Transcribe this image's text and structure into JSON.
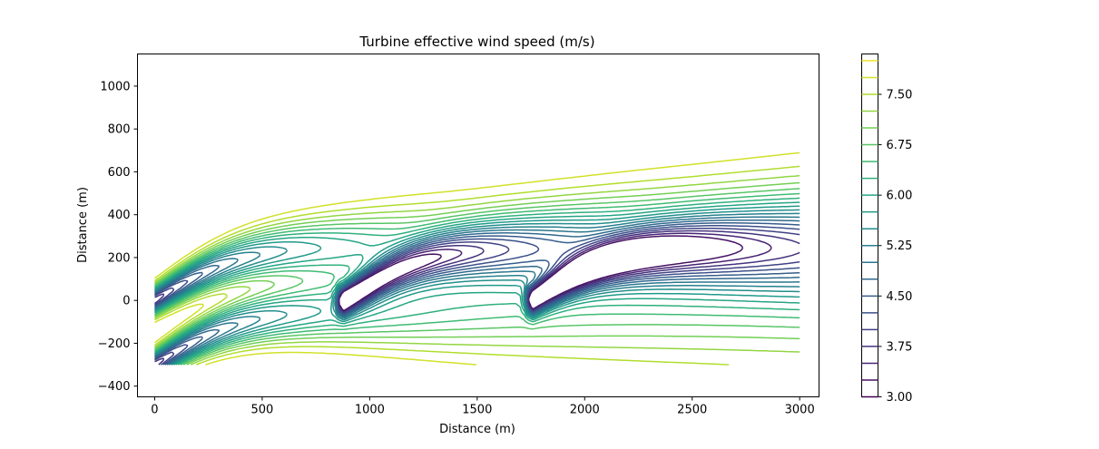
{
  "chart_data": {
    "type": "contour",
    "title": "Turbine effective wind speed (m/s)",
    "xlabel": "Distance (m)",
    "ylabel": "Distance (m)",
    "xlim": [
      -80,
      3090
    ],
    "ylim": [
      -450,
      1150
    ],
    "xticks": [
      0,
      500,
      1000,
      1500,
      2000,
      2500,
      3000
    ],
    "yticks": [
      -400,
      -200,
      0,
      200,
      400,
      600,
      800,
      1000
    ],
    "grid": false,
    "colormap": "viridis",
    "colorbar": {
      "min": 3.0,
      "max": 8.1,
      "levels": [
        3.0,
        3.25,
        3.5,
        3.75,
        4.0,
        4.25,
        4.5,
        4.75,
        5.0,
        5.25,
        5.5,
        5.75,
        6.0,
        6.25,
        6.5,
        6.75,
        7.0,
        7.25,
        7.5,
        7.75,
        8.0
      ],
      "tick_labels": [
        "3.00",
        "3.75",
        "4.50",
        "5.25",
        "6.00",
        "6.75",
        "7.50"
      ]
    },
    "turbines": [
      {
        "x": 0,
        "y": 0
      },
      {
        "x": 0,
        "y": -300
      },
      {
        "x": 880,
        "y": 0
      },
      {
        "x": 1760,
        "y": 0
      }
    ]
  }
}
